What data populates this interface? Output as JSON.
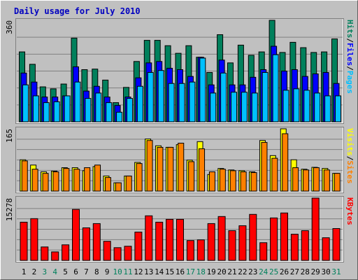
{
  "title": "Daily usage for July 2010",
  "legend_separator": "/",
  "chart_data": [
    {
      "type": "bar",
      "ylim": [
        0,
        360
      ],
      "yticks": [
        360
      ],
      "series": [
        {
          "name": "Hits",
          "color": "#00805c",
          "values": [
            248,
            204,
            124,
            117,
            134,
            297,
            185,
            187,
            148,
            68,
            122,
            214,
            289,
            289,
            270,
            243,
            270,
            229,
            175,
            309,
            209,
            272,
            236,
            248,
            360,
            246,
            282,
            263,
            246,
            248,
            294
          ]
        },
        {
          "name": "Files",
          "color": "#0000ff",
          "values": [
            173,
            141,
            88,
            88,
            92,
            195,
            109,
            126,
            88,
            58,
            88,
            156,
            209,
            214,
            190,
            185,
            161,
            229,
            131,
            219,
            131,
            131,
            158,
            185,
            268,
            180,
            185,
            161,
            170,
            175,
            136
          ]
        },
        {
          "name": "Pages",
          "color": "#00c0ff",
          "values": [
            131,
            92,
            68,
            71,
            92,
            141,
            83,
            102,
            68,
            34,
            83,
            126,
            175,
            182,
            136,
            136,
            141,
            226,
            102,
            173,
            105,
            105,
            102,
            175,
            238,
            112,
            117,
            112,
            102,
            92,
            92
          ]
        }
      ]
    },
    {
      "type": "bar",
      "ylim": [
        0,
        165
      ],
      "yticks": [
        165
      ],
      "series": [
        {
          "name": "Visits",
          "color": "#ffff00",
          "values": [
            83,
            69,
            51,
            53,
            62,
            62,
            54,
            65,
            40,
            22,
            40,
            76,
            138,
            120,
            116,
            123,
            82,
            131,
            44,
            60,
            56,
            54,
            51,
            134,
            94,
            165,
            83,
            58,
            63,
            60,
            47
          ]
        },
        {
          "name": "Sites",
          "color": "#ff8000",
          "values": [
            80,
            58,
            47,
            51,
            60,
            58,
            62,
            69,
            36,
            22,
            40,
            73,
            134,
            116,
            116,
            127,
            78,
            112,
            51,
            58,
            54,
            51,
            49,
            129,
            87,
            152,
            62,
            56,
            62,
            56,
            47
          ]
        }
      ]
    },
    {
      "type": "bar",
      "ylim": [
        0,
        15278
      ],
      "yticks": [
        15278
      ],
      "categories": [
        1,
        2,
        3,
        4,
        5,
        6,
        7,
        8,
        9,
        10,
        11,
        12,
        13,
        14,
        15,
        16,
        17,
        18,
        19,
        20,
        21,
        22,
        23,
        24,
        25,
        26,
        27,
        28,
        29,
        30,
        31
      ],
      "category_colors": [
        "#000000",
        "#000000",
        "#00805c",
        "#00805c",
        "#000000",
        "#000000",
        "#000000",
        "#000000",
        "#000000",
        "#00805c",
        "#00805c",
        "#000000",
        "#000000",
        "#000000",
        "#000000",
        "#000000",
        "#00805c",
        "#00805c",
        "#000000",
        "#000000",
        "#000000",
        "#000000",
        "#000000",
        "#00805c",
        "#00805c",
        "#000000",
        "#000000",
        "#000000",
        "#000000",
        "#000000",
        "#00805c"
      ],
      "series": [
        {
          "name": "KBytes",
          "color": "#ff0000",
          "values": [
            9374,
            10242,
            3298,
            2083,
            3819,
            12499,
            7986,
            9027,
            4687,
            3125,
            3472,
            6944,
            10937,
            9374,
            10069,
            10069,
            4861,
            5034,
            9027,
            10763,
            7291,
            8506,
            11284,
            4340,
            10416,
            11631,
            6423,
            7291,
            15278,
            5555,
            7812
          ]
        }
      ]
    }
  ]
}
